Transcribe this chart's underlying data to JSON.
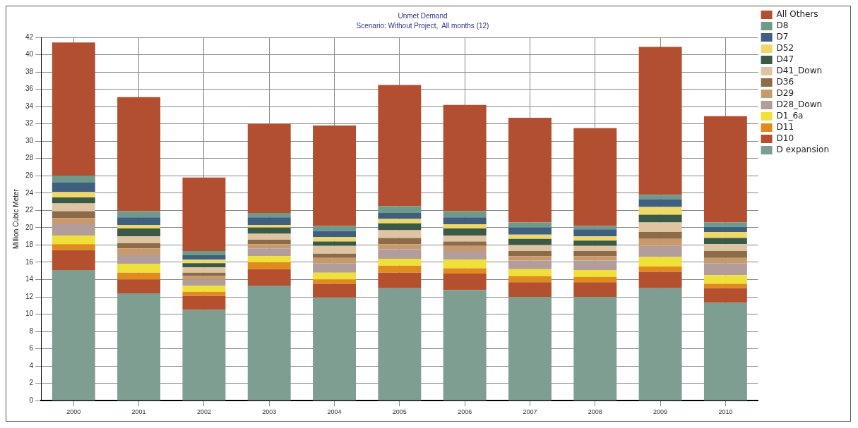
{
  "chart_data": {
    "type": "bar",
    "title": "Unmet Demand",
    "subtitle": "Scenario: Without Project,  All months (12)",
    "ylabel": "Million Cubic Meter",
    "categories": [
      "2000",
      "2001",
      "2002",
      "2003",
      "2004",
      "2005",
      "2006",
      "2007",
      "2008",
      "2009",
      "2010"
    ],
    "stacked": true,
    "ylim": [
      0,
      42
    ],
    "yticks": [
      0,
      2,
      4,
      6,
      8,
      10,
      12,
      14,
      16,
      18,
      20,
      22,
      24,
      26,
      28,
      30,
      32,
      34,
      36,
      38,
      40,
      42
    ],
    "grid": true,
    "legend": "top right",
    "series": [
      {
        "name": "D expansion",
        "color": "#7d9e90",
        "values": [
          15.1,
          12.4,
          10.5,
          13.3,
          11.9,
          13.0,
          12.8,
          12.0,
          12.0,
          13.0,
          11.3
        ]
      },
      {
        "name": "D10",
        "color": "#b5502f",
        "values": [
          2.3,
          1.6,
          1.6,
          1.9,
          1.6,
          1.8,
          1.9,
          1.7,
          1.7,
          1.9,
          1.7
        ]
      },
      {
        "name": "D11",
        "color": "#e08c1c",
        "values": [
          0.7,
          0.8,
          0.5,
          0.8,
          0.5,
          0.8,
          0.6,
          0.7,
          0.6,
          0.6,
          0.5
        ]
      },
      {
        "name": "D1_6a",
        "color": "#f0e03a",
        "values": [
          1.0,
          1.0,
          0.7,
          0.7,
          0.8,
          0.8,
          1.0,
          0.8,
          0.8,
          1.1,
          1.0
        ]
      },
      {
        "name": "D28_Down",
        "color": "#b39d9a",
        "values": [
          1.3,
          1.1,
          0.7,
          0.9,
          1.1,
          1.1,
          1.0,
          1.0,
          1.1,
          1.3,
          1.4
        ]
      },
      {
        "name": "D29",
        "color": "#c89a6b",
        "values": [
          0.7,
          0.7,
          0.4,
          0.5,
          0.6,
          0.6,
          0.6,
          0.5,
          0.5,
          0.8,
          0.6
        ]
      },
      {
        "name": "D36",
        "color": "#8c6c48",
        "values": [
          0.8,
          0.6,
          0.4,
          0.5,
          0.5,
          0.7,
          0.5,
          0.6,
          0.6,
          0.8,
          0.8
        ]
      },
      {
        "name": "D41_Down",
        "color": "#dfc4a4",
        "values": [
          0.9,
          0.8,
          0.6,
          0.7,
          0.9,
          0.9,
          0.7,
          0.7,
          0.6,
          1.1,
          0.8
        ]
      },
      {
        "name": "D47",
        "color": "#3a5a45",
        "values": [
          0.7,
          0.9,
          0.5,
          0.7,
          0.5,
          0.8,
          0.8,
          0.7,
          0.6,
          0.9,
          0.7
        ]
      },
      {
        "name": "D52",
        "color": "#f0d76a",
        "values": [
          0.6,
          0.4,
          0.4,
          0.3,
          0.5,
          0.5,
          0.5,
          0.5,
          0.5,
          0.9,
          0.7
        ]
      },
      {
        "name": "D7",
        "color": "#3f5f80",
        "values": [
          1.1,
          0.9,
          0.5,
          0.9,
          0.7,
          0.7,
          0.8,
          0.8,
          0.8,
          0.9,
          0.6
        ]
      },
      {
        "name": "D8",
        "color": "#6f9a8a",
        "values": [
          0.8,
          0.7,
          0.5,
          0.5,
          0.6,
          0.8,
          0.7,
          0.6,
          0.4,
          0.5,
          0.5
        ]
      },
      {
        "name": "All Others",
        "color": "#b24f30",
        "values": [
          15.4,
          13.2,
          8.5,
          10.3,
          11.6,
          14.0,
          12.3,
          12.1,
          11.3,
          17.1,
          12.3
        ]
      }
    ]
  }
}
